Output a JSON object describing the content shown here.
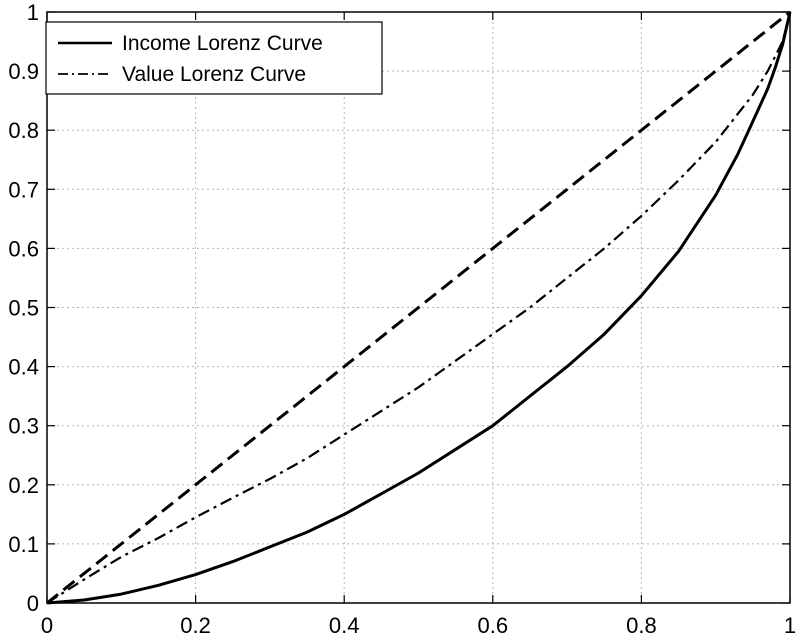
{
  "chart_data": {
    "type": "line",
    "title": "",
    "xlabel": "",
    "ylabel": "",
    "xlim": [
      0,
      1
    ],
    "ylim": [
      0,
      1
    ],
    "grid": true,
    "legend_position": "top-left",
    "x_ticks": [
      0,
      0.2,
      0.4,
      0.6,
      0.8,
      1
    ],
    "y_ticks": [
      0,
      0.1,
      0.2,
      0.3,
      0.4,
      0.5,
      0.6,
      0.7,
      0.8,
      0.9,
      1
    ],
    "x_tick_labels": [
      "0",
      "0.2",
      "0.4",
      "0.6",
      "0.8",
      "1"
    ],
    "y_tick_labels": [
      "0",
      "0.1",
      "0.2",
      "0.3",
      "0.4",
      "0.5",
      "0.6",
      "0.7",
      "0.8",
      "0.9",
      "1"
    ],
    "series": [
      {
        "name": "",
        "style": "dashed",
        "color": "#000000",
        "x": [
          0,
          1
        ],
        "y": [
          0,
          1
        ]
      },
      {
        "name": "Income Lorenz Curve",
        "style": "solid",
        "color": "#000000",
        "x": [
          0,
          0.05,
          0.1,
          0.15,
          0.2,
          0.25,
          0.3,
          0.35,
          0.4,
          0.45,
          0.5,
          0.55,
          0.6,
          0.65,
          0.7,
          0.75,
          0.8,
          0.85,
          0.9,
          0.93,
          0.95,
          0.97,
          0.98,
          0.99,
          1
        ],
        "y": [
          0,
          0.005,
          0.015,
          0.03,
          0.048,
          0.07,
          0.095,
          0.12,
          0.15,
          0.185,
          0.22,
          0.26,
          0.3,
          0.35,
          0.4,
          0.455,
          0.52,
          0.595,
          0.69,
          0.76,
          0.815,
          0.87,
          0.905,
          0.945,
          1
        ]
      },
      {
        "name": "Value Lorenz Curve",
        "style": "dashdot",
        "color": "#000000",
        "x": [
          0,
          0.05,
          0.1,
          0.15,
          0.2,
          0.25,
          0.3,
          0.35,
          0.4,
          0.45,
          0.5,
          0.55,
          0.6,
          0.65,
          0.7,
          0.75,
          0.8,
          0.85,
          0.9,
          0.95,
          0.97,
          0.99,
          1
        ],
        "y": [
          0,
          0.04,
          0.078,
          0.11,
          0.145,
          0.178,
          0.21,
          0.245,
          0.285,
          0.325,
          0.365,
          0.41,
          0.455,
          0.5,
          0.55,
          0.6,
          0.655,
          0.715,
          0.78,
          0.86,
          0.9,
          0.95,
          1
        ]
      }
    ]
  }
}
